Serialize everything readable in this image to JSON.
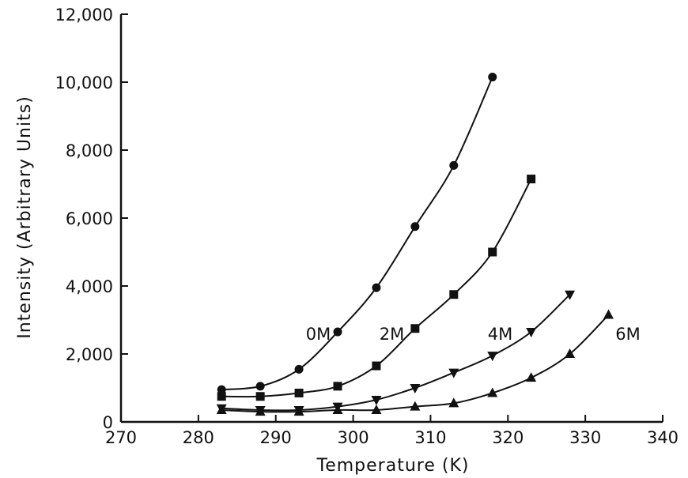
{
  "chart_data": {
    "type": "scatter",
    "title": "",
    "xlabel": "Temperature (K)",
    "ylabel": "Intensity (Arbitrary Units)",
    "xlim": [
      270,
      340
    ],
    "ylim": [
      0,
      12000
    ],
    "x_ticks": [
      270,
      280,
      290,
      300,
      310,
      320,
      330,
      340
    ],
    "y_ticks": [
      0,
      2000,
      4000,
      6000,
      8000,
      10000,
      12000
    ],
    "x_tick_labels": [
      "270",
      "280",
      "290",
      "300",
      "310",
      "320",
      "330",
      "340"
    ],
    "y_tick_labels": [
      "0",
      "2,000",
      "4,000",
      "6,000",
      "8,000",
      "10,000",
      "12,000"
    ],
    "grid": false,
    "legend": "none",
    "series": [
      {
        "name": "0M",
        "marker": "circle",
        "x": [
          283,
          288,
          293,
          298,
          303,
          308,
          313,
          318
        ],
        "y": [
          950,
          1050,
          1550,
          2650,
          3950,
          5750,
          7550,
          10150
        ]
      },
      {
        "name": "2M",
        "marker": "square",
        "x": [
          283,
          288,
          293,
          298,
          303,
          308,
          313,
          318,
          323
        ],
        "y": [
          750,
          750,
          850,
          1050,
          1650,
          2750,
          3750,
          5000,
          7150
        ]
      },
      {
        "name": "4M",
        "marker": "triangle-down",
        "x": [
          283,
          288,
          293,
          298,
          303,
          308,
          313,
          318,
          323,
          328
        ],
        "y": [
          400,
          350,
          350,
          450,
          650,
          1000,
          1450,
          1950,
          2650,
          3750
        ]
      },
      {
        "name": "6M",
        "marker": "triangle-up",
        "x": [
          283,
          288,
          293,
          298,
          303,
          308,
          313,
          318,
          323,
          328,
          333
        ],
        "y": [
          350,
          300,
          300,
          350,
          350,
          450,
          550,
          850,
          1300,
          2000,
          3150
        ]
      }
    ],
    "series_label_anchor": {
      "0M": [
        295.5,
        2600
      ],
      "2M": [
        305,
        2600
      ],
      "4M": [
        319,
        2600
      ],
      "6M": [
        335.5,
        2600
      ]
    }
  }
}
